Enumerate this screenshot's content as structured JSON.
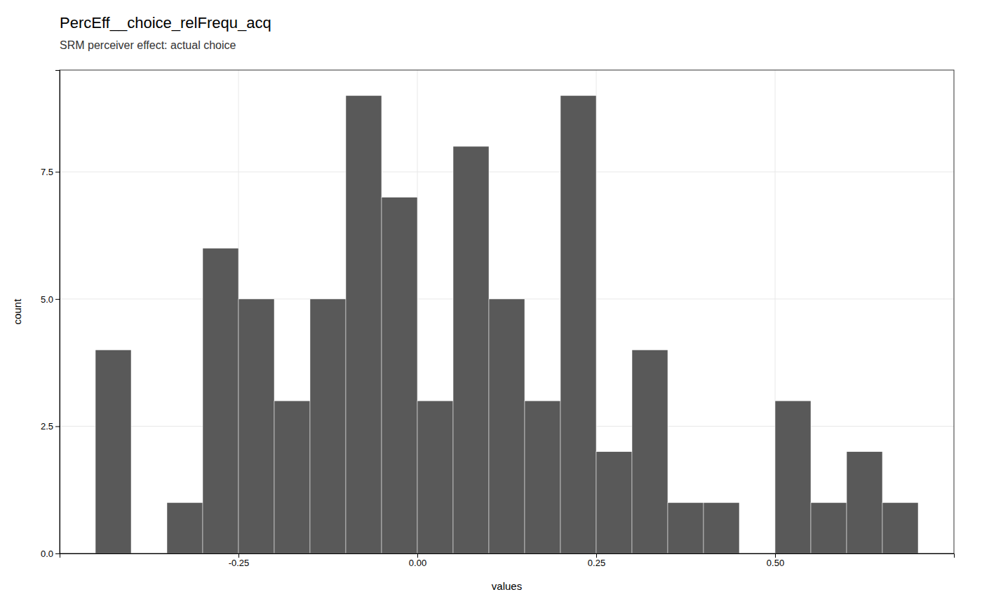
{
  "chart_data": {
    "type": "histogram",
    "title": "PercEff__choice_relFrequ_acq",
    "subtitle": "SRM perceiver effect: actual choice",
    "x_label": "values",
    "y_label": "count",
    "color": "#595959",
    "bins": [
      -0.45,
      -0.4,
      -0.35,
      -0.3,
      -0.25,
      -0.2,
      -0.15,
      -0.1,
      -0.05,
      0.0,
      0.05,
      0.1,
      0.15,
      0.2,
      0.25,
      0.3,
      0.35,
      0.4,
      0.45,
      0.5,
      0.55,
      0.6,
      0.65,
      0.7
    ],
    "values": [
      4,
      0,
      1,
      6,
      5,
      3,
      5,
      9,
      7,
      3,
      8,
      5,
      3,
      9,
      2,
      4,
      1,
      1,
      0,
      3,
      1,
      2,
      1
    ],
    "xlim": [
      -0.5,
      0.75
    ],
    "ylim": [
      0.0,
      9.5
    ],
    "xticks": [
      -0.25,
      {
        "value": 0.0,
        "label": "0.00"
      },
      0.25,
      {
        "value": 0.5,
        "label": "0.50"
      }
    ],
    "yticks": [
      {
        "value": 0.0,
        "label": "0.0"
      },
      2.5,
      {
        "value": 5.0,
        "label": "5.0"
      },
      7.5
    ],
    "grid": true
  }
}
